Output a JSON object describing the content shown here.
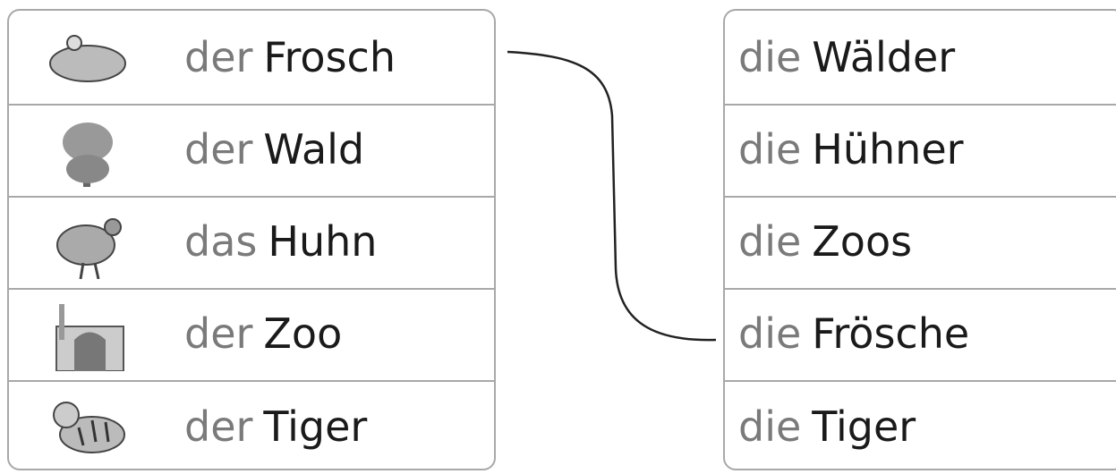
{
  "left": [
    {
      "article": "der",
      "noun": "Frosch"
    },
    {
      "article": "der",
      "noun": "Wald"
    },
    {
      "article": "das",
      "noun": "Huhn"
    },
    {
      "article": "der",
      "noun": "Zoo"
    },
    {
      "article": "der",
      "noun": "Tiger"
    }
  ],
  "right": [
    {
      "article": "die",
      "noun": "Wälder"
    },
    {
      "article": "die",
      "noun": "Hühner"
    },
    {
      "article": "die",
      "noun": "Zoos"
    },
    {
      "article": "die",
      "noun": "Frösche"
    },
    {
      "article": "die",
      "noun": "Tiger"
    }
  ]
}
